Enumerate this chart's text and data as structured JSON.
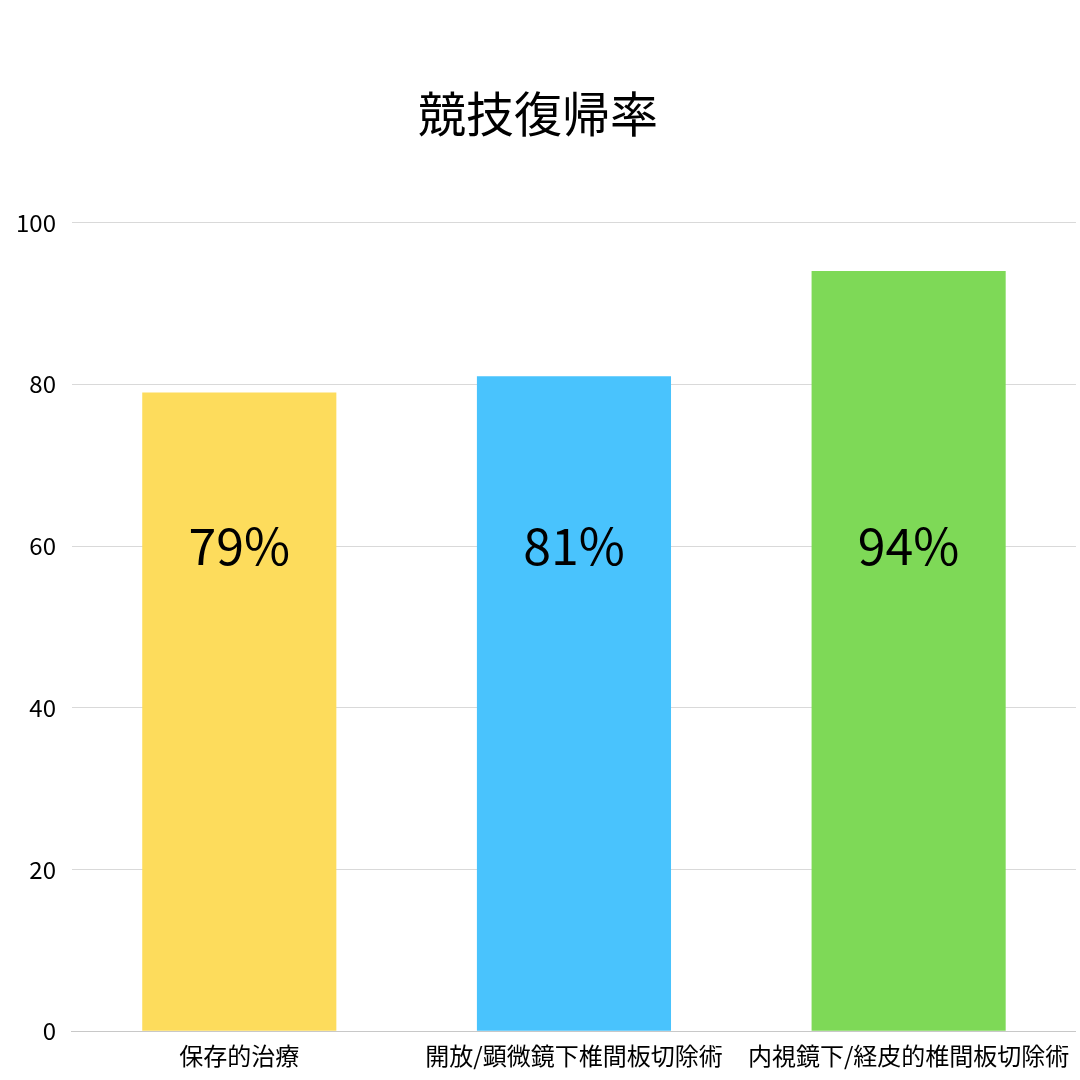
{
  "chart_data": {
    "type": "bar",
    "title": "競技復帰率",
    "categories": [
      "保存的治療",
      "開放/顕微鏡下椎間板切除術",
      "内視鏡下/経皮的椎間板切除術"
    ],
    "values": [
      79,
      81,
      94
    ],
    "colors": [
      "#fddc5c",
      "#49c3fd",
      "#7ed957"
    ],
    "value_labels": [
      "79%",
      "81%",
      "94%"
    ],
    "ylim": [
      0,
      100
    ],
    "yticks": [
      0,
      20,
      40,
      60,
      80,
      100
    ],
    "grid": "y",
    "legend": false
  }
}
